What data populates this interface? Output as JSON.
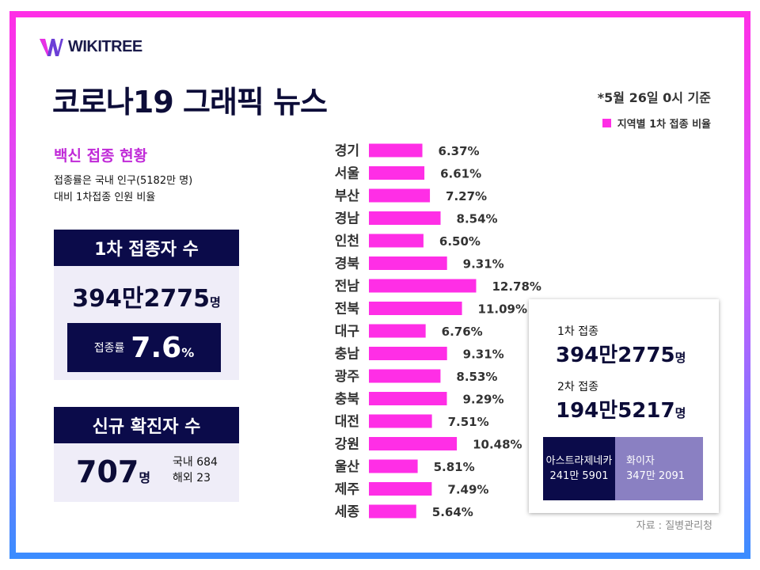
{
  "brand": {
    "name": "WIKITREE"
  },
  "header": {
    "title": "코로나19 그래픽 뉴스",
    "basis": "*5월 26일 0시 기준",
    "legend": "지역별 1차 접종 비율"
  },
  "vaccine": {
    "heading": "백신 접종 현황",
    "desc_line1": "접종률은 국내 인구(5182만 명)",
    "desc_line2": "대비 1차접종 인원 비율",
    "first_tag": "1차 접종자 수",
    "first_count": "394만2775",
    "first_unit": "명",
    "rate_label": "접종률",
    "rate_value": "7.6",
    "rate_unit": "%"
  },
  "cases": {
    "tag": "신규 확진자 수",
    "count": "707",
    "unit": "명",
    "domestic": "국내 684",
    "overseas": "해외 23"
  },
  "panel": {
    "first_label": "1차 접종",
    "first_value": "394만2775",
    "first_unit": "명",
    "second_label": "2차 접종",
    "second_value": "194만5217",
    "second_unit": "명",
    "az_name": "아스트라제네카",
    "az_value": "241만 5901",
    "pf_name": "화이자",
    "pf_value": "347만 2091"
  },
  "source": "자료 : 질병관리청",
  "colors": {
    "bar": "#ff2ee6",
    "navy": "#0b0b4a",
    "lavender": "#8a80c2"
  },
  "chart_data": {
    "type": "bar",
    "orientation": "horizontal",
    "categories": [
      "경기",
      "서울",
      "부산",
      "경남",
      "인천",
      "경북",
      "전남",
      "전북",
      "대구",
      "충남",
      "광주",
      "충북",
      "대전",
      "강원",
      "울산",
      "제주",
      "세종"
    ],
    "values": [
      6.37,
      6.61,
      7.27,
      8.54,
      6.5,
      9.31,
      12.78,
      11.09,
      6.76,
      9.31,
      8.53,
      9.29,
      7.51,
      10.48,
      5.81,
      7.49,
      5.64
    ],
    "labels": [
      "6.37%",
      "6.61%",
      "7.27%",
      "8.54%",
      "6.50%",
      "9.31%",
      "12.78%",
      "11.09%",
      "6.76%",
      "9.31%",
      "8.53%",
      "9.29%",
      "7.51%",
      "10.48%",
      "5.81%",
      "7.49%",
      "5.64%"
    ],
    "unit": "%",
    "legend": "지역별 1차 접종 비율"
  }
}
